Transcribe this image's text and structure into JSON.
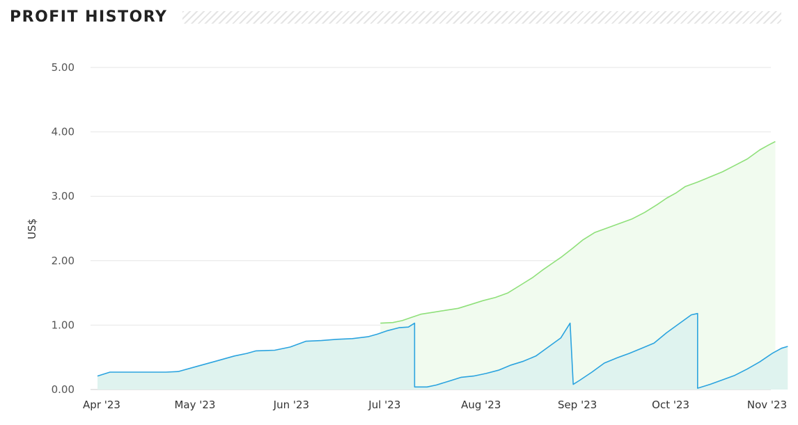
{
  "header": {
    "title": "PROFIT HISTORY"
  },
  "colors": {
    "cumulative_line": "#8fe07a",
    "cumulative_fill": "#f1fbef",
    "period_line": "#2aa3df",
    "period_fill": "#dff3ef",
    "grid": "#e6e6e6"
  },
  "chart_data": {
    "type": "area",
    "ylabel": "US$",
    "ylim": [
      0,
      5
    ],
    "yticks": [
      0,
      1,
      2,
      3,
      4,
      5
    ],
    "ytick_labels": [
      "0.00",
      "1.00",
      "2.00",
      "3.00",
      "4.00",
      "5.00"
    ],
    "xlim": [
      "2023-04-01",
      "2023-11-02"
    ],
    "xticks": [
      "2023-04-01",
      "2023-05-01",
      "2023-06-01",
      "2023-07-01",
      "2023-08-01",
      "2023-09-01",
      "2023-10-01",
      "2023-11-01"
    ],
    "xtick_labels": [
      "Apr '23",
      "May '23",
      "Jun '23",
      "Jul '23",
      "Aug '23",
      "Sep '23",
      "Oct '23",
      "Nov '23"
    ],
    "grid": true,
    "series": [
      {
        "values": [
          [
            "2023-07-01",
            1.03
          ],
          [
            "2023-07-05",
            1.04
          ],
          [
            "2023-07-08",
            1.07
          ],
          [
            "2023-07-11",
            1.12
          ],
          [
            "2023-07-14",
            1.17
          ],
          [
            "2023-07-18",
            1.2
          ],
          [
            "2023-07-22",
            1.23
          ],
          [
            "2023-07-26",
            1.26
          ],
          [
            "2023-07-30",
            1.32
          ],
          [
            "2023-08-03",
            1.38
          ],
          [
            "2023-08-07",
            1.43
          ],
          [
            "2023-08-11",
            1.5
          ],
          [
            "2023-08-15",
            1.62
          ],
          [
            "2023-08-19",
            1.74
          ],
          [
            "2023-08-22",
            1.85
          ],
          [
            "2023-08-25",
            1.95
          ],
          [
            "2023-08-28",
            2.05
          ],
          [
            "2023-09-01",
            2.2
          ],
          [
            "2023-09-04",
            2.32
          ],
          [
            "2023-09-08",
            2.44
          ],
          [
            "2023-09-12",
            2.51
          ],
          [
            "2023-09-16",
            2.58
          ],
          [
            "2023-09-20",
            2.65
          ],
          [
            "2023-09-24",
            2.75
          ],
          [
            "2023-09-28",
            2.87
          ],
          [
            "2023-10-01",
            2.97
          ],
          [
            "2023-10-04",
            3.05
          ],
          [
            "2023-10-07",
            3.15
          ],
          [
            "2023-10-11",
            3.22
          ],
          [
            "2023-10-15",
            3.3
          ],
          [
            "2023-10-19",
            3.38
          ],
          [
            "2023-10-23",
            3.48
          ],
          [
            "2023-10-27",
            3.58
          ],
          [
            "2023-10-31",
            3.72
          ],
          [
            "2023-11-03",
            3.8
          ],
          [
            "2023-11-05",
            3.85
          ]
        ]
      },
      {
        "values": [
          [
            "2023-04-01",
            0.21
          ],
          [
            "2023-04-05",
            0.27
          ],
          [
            "2023-04-11",
            0.27
          ],
          [
            "2023-04-17",
            0.27
          ],
          [
            "2023-04-23",
            0.27
          ],
          [
            "2023-04-27",
            0.28
          ],
          [
            "2023-05-03",
            0.36
          ],
          [
            "2023-05-09",
            0.44
          ],
          [
            "2023-05-15",
            0.52
          ],
          [
            "2023-05-19",
            0.56
          ],
          [
            "2023-05-22",
            0.6
          ],
          [
            "2023-05-28",
            0.61
          ],
          [
            "2023-06-02",
            0.66
          ],
          [
            "2023-06-07",
            0.75
          ],
          [
            "2023-06-12",
            0.76
          ],
          [
            "2023-06-17",
            0.78
          ],
          [
            "2023-06-22",
            0.79
          ],
          [
            "2023-06-27",
            0.82
          ],
          [
            "2023-06-30",
            0.86
          ],
          [
            "2023-07-03",
            0.91
          ],
          [
            "2023-07-07",
            0.96
          ],
          [
            "2023-07-10",
            0.97
          ],
          [
            "2023-07-12",
            1.03
          ],
          [
            "2023-07-12",
            0.04
          ],
          [
            "2023-07-16",
            0.04
          ],
          [
            "2023-07-19",
            0.07
          ],
          [
            "2023-07-23",
            0.13
          ],
          [
            "2023-07-27",
            0.19
          ],
          [
            "2023-07-31",
            0.21
          ],
          [
            "2023-08-04",
            0.25
          ],
          [
            "2023-08-08",
            0.3
          ],
          [
            "2023-08-12",
            0.38
          ],
          [
            "2023-08-16",
            0.44
          ],
          [
            "2023-08-20",
            0.52
          ],
          [
            "2023-08-24",
            0.66
          ],
          [
            "2023-08-28",
            0.8
          ],
          [
            "2023-08-31",
            1.03
          ],
          [
            "2023-09-01",
            0.08
          ],
          [
            "2023-09-03",
            0.14
          ],
          [
            "2023-09-07",
            0.27
          ],
          [
            "2023-09-11",
            0.41
          ],
          [
            "2023-09-15",
            0.49
          ],
          [
            "2023-09-19",
            0.56
          ],
          [
            "2023-09-23",
            0.64
          ],
          [
            "2023-09-27",
            0.72
          ],
          [
            "2023-10-01",
            0.88
          ],
          [
            "2023-10-05",
            1.02
          ],
          [
            "2023-10-09",
            1.16
          ],
          [
            "2023-10-11",
            1.18
          ],
          [
            "2023-10-11",
            0.02
          ],
          [
            "2023-10-15",
            0.08
          ],
          [
            "2023-10-19",
            0.15
          ],
          [
            "2023-10-23",
            0.22
          ],
          [
            "2023-10-27",
            0.32
          ],
          [
            "2023-10-31",
            0.43
          ],
          [
            "2023-11-04",
            0.56
          ],
          [
            "2023-11-07",
            0.64
          ],
          [
            "2023-11-09",
            0.67
          ]
        ]
      }
    ]
  }
}
